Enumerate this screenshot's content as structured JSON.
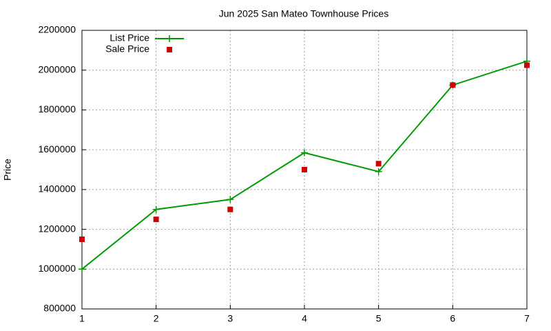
{
  "chart_data": {
    "type": "line",
    "title": "Jun 2025 San Mateo Townhouse Prices",
    "y_label": "Price",
    "x": [
      1,
      2,
      3,
      4,
      5,
      6,
      7
    ],
    "xlim": [
      1,
      7
    ],
    "xticks": [
      1,
      2,
      3,
      4,
      5,
      6,
      7
    ],
    "ylim": [
      800000,
      2200000
    ],
    "yticks": [
      800000,
      1000000,
      1200000,
      1400000,
      1600000,
      1800000,
      2000000,
      2200000
    ],
    "grid": true,
    "legend": "top-left",
    "series": [
      {
        "name": "List Price",
        "color": "#009900",
        "style": "linespoints",
        "values": [
          1000000,
          1300000,
          1350000,
          1585000,
          1490000,
          1925000,
          2045000
        ]
      },
      {
        "name": "Sale Price",
        "color": "#cc0000",
        "style": "points",
        "values": [
          1150000,
          1250000,
          1300000,
          1500000,
          1530000,
          1925000,
          2025000
        ]
      }
    ]
  }
}
